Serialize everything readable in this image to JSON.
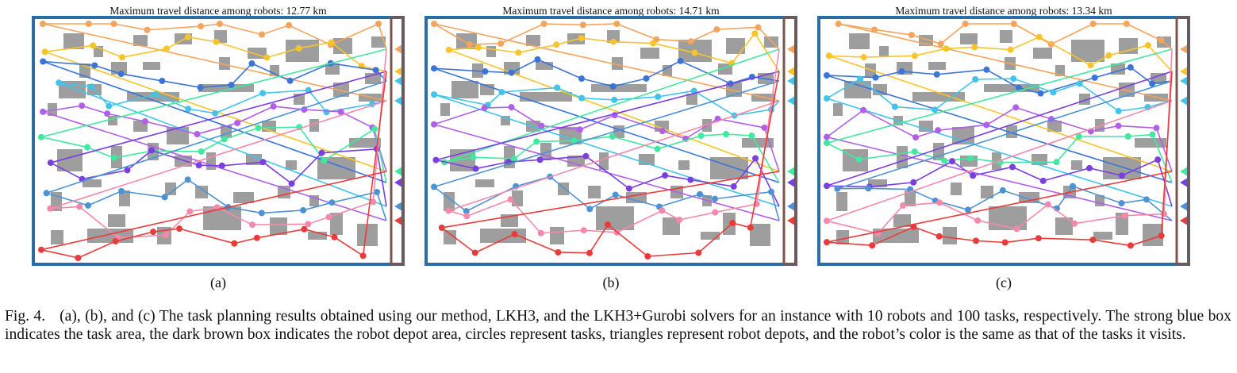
{
  "panels": [
    {
      "id": "a",
      "title": "Maximum travel distance among robots: 12.77 km",
      "label": "(a)"
    },
    {
      "id": "b",
      "title": "Maximum travel distance among robots: 14.71 km",
      "label": "(b)"
    },
    {
      "id": "c",
      "title": "Maximum travel distance among robots: 13.34 km",
      "label": "(c)"
    }
  ],
  "caption": {
    "fig": "Fig. 4.",
    "text": "(a), (b), and (c) The task planning results obtained using our method, LKH3, and the LKH3+Gurobi solvers for an instance with 10 robots and 100 tasks, respectively. The strong blue box indicates the task area, the dark brown box indicates the robot depot area, circles represent tasks, triangles represent robot depots, and the robot’s color is the same as that of the tasks it visits."
  },
  "colors": {
    "task_area_border": "#2e6da4",
    "depot_area_border": "#7a564c",
    "obstacle": "#9e9e9e",
    "robots": [
      "#f4a45c",
      "#f7c52b",
      "#3b74d8",
      "#42c4ea",
      "#b15fe8",
      "#41e8a0",
      "#7a3fe0",
      "#4d93d3",
      "#f589ad",
      "#ea3b3b"
    ]
  }
}
